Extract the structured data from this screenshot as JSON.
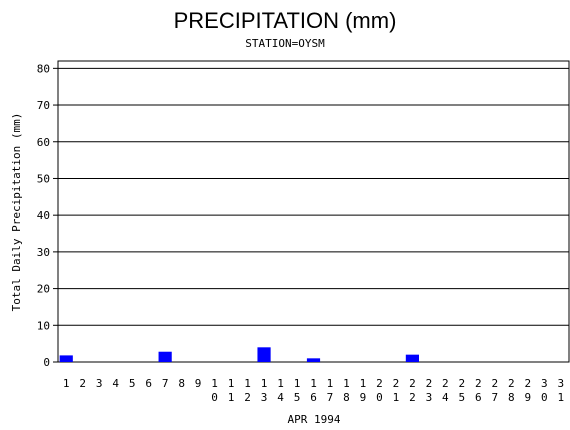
{
  "chart_data": {
    "type": "bar",
    "title": "PRECIPITATION (mm)",
    "subtitle": "STATION=OYSM",
    "x_label": "APR 1994",
    "y_label": "Total Daily Precipitation (mm)",
    "categories": [
      "1",
      "2",
      "3",
      "4",
      "5",
      "6",
      "7",
      "8",
      "9",
      "10",
      "11",
      "12",
      "13",
      "14",
      "15",
      "16",
      "17",
      "18",
      "19",
      "20",
      "21",
      "22",
      "23",
      "24",
      "25",
      "26",
      "27",
      "28",
      "29",
      "30",
      "31"
    ],
    "values": [
      1.8,
      0,
      0,
      0,
      0,
      0,
      2.8,
      0,
      0,
      0,
      0,
      0,
      4,
      0,
      0,
      1,
      0,
      0,
      0,
      0,
      0,
      2,
      0,
      0,
      0,
      0,
      0,
      0,
      0,
      0,
      0
    ],
    "color": "#0000ff",
    "ylim": [
      0,
      82
    ],
    "yticks": [
      0,
      10,
      20,
      30,
      40,
      50,
      60,
      70,
      80
    ],
    "grid": true
  }
}
